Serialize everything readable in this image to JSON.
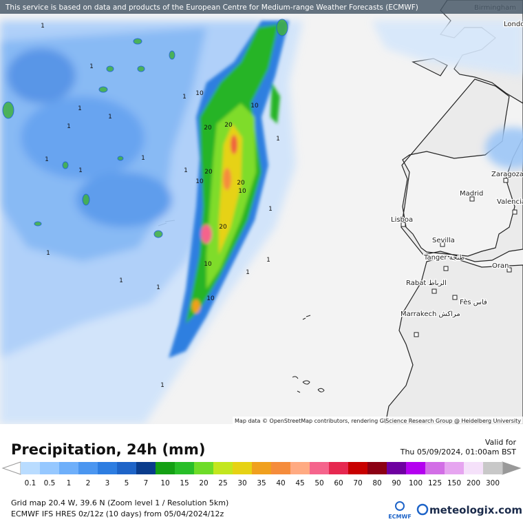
{
  "banner": "This service is based on data and products of the European Centre for Medium-range Weather Forecasts (ECMWF)",
  "map": {
    "places": [
      "Birmingham",
      "London",
      "Zaragoza",
      "Madrid",
      "Valencia",
      "Lisboa",
      "Sevilla",
      "Tanger طنجة",
      "Oran",
      "Rabat الرباط",
      "Fès فاس",
      "Marrakech مراكش"
    ],
    "contour_labels": [
      "1",
      "1",
      "1",
      "1",
      "1",
      "1",
      "1",
      "1",
      "1",
      "1",
      "1",
      "1",
      "1",
      "10",
      "10",
      "10",
      "10",
      "10",
      "20",
      "20",
      "20",
      "20",
      "20",
      "10",
      "1",
      "1",
      "1",
      "1",
      "1"
    ],
    "attribution": "Map data © OpenStreetMap contributors, rendering GIScience Research Group @ Heidelberg University"
  },
  "legend": {
    "title": "Precipitation, 24h (mm)",
    "valid_label": "Valid for",
    "valid_time": "Thu 05/09/2024, 01:00am BST",
    "scale": [
      {
        "value": 0.1,
        "color": "#b9dcff"
      },
      {
        "value": 0.5,
        "color": "#96c8ff"
      },
      {
        "value": 1,
        "color": "#6eaffa"
      },
      {
        "value": 2,
        "color": "#4b96f0"
      },
      {
        "value": 3,
        "color": "#2d7de1"
      },
      {
        "value": 5,
        "color": "#1e64c8"
      },
      {
        "value": 7,
        "color": "#0a3c8c"
      },
      {
        "value": 10,
        "color": "#14a014"
      },
      {
        "value": 15,
        "color": "#28be28"
      },
      {
        "value": 20,
        "color": "#6edc28"
      },
      {
        "value": 25,
        "color": "#c3e61e"
      },
      {
        "value": 30,
        "color": "#e6d214"
      },
      {
        "value": 35,
        "color": "#f0a01e"
      },
      {
        "value": 40,
        "color": "#f58c3c"
      },
      {
        "value": 45,
        "color": "#ffaa82"
      },
      {
        "value": 50,
        "color": "#f5648c"
      },
      {
        "value": 60,
        "color": "#e62850"
      },
      {
        "value": 70,
        "color": "#c80000"
      },
      {
        "value": 80,
        "color": "#8c0014"
      },
      {
        "value": 90,
        "color": "#6e00a0"
      },
      {
        "value": 100,
        "color": "#b400f0"
      },
      {
        "value": 125,
        "color": "#d26ee6"
      },
      {
        "value": 150,
        "color": "#e6a5f0"
      },
      {
        "value": 200,
        "color": "#f5e1fa"
      },
      {
        "value": 300,
        "color": "#c8c8c8"
      }
    ]
  },
  "footer": {
    "grid_info": "Grid map 20.4 W, 39.6 N (Zoom level 1 / Resolution 5km)",
    "model_info": "ECMWF IFS HRES 0z/12z (10 days) from 05/04/2024/12z",
    "ecmwf_logo": "ECMWF",
    "brand": "meteologix.com"
  }
}
